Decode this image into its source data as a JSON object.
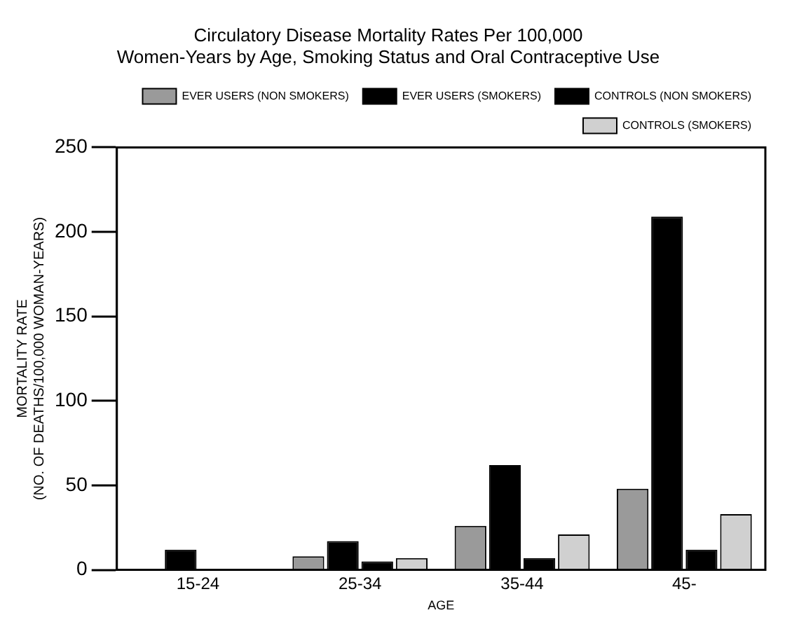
{
  "chart_data": {
    "type": "bar",
    "title": "Circulatory Disease Mortality Rates Per 100,000\nWomen-Years by Age, Smoking Status and Oral Contraceptive Use",
    "xlabel": "AGE",
    "ylabel": "MORTALITY RATE\n(NO. OF DEATHS/100,000 WOMAN-YEARS)",
    "categories": [
      "15-24",
      "25-34",
      "35-44",
      "45-"
    ],
    "series": [
      {
        "name": "EVER USERS (NON SMOKERS)",
        "color": "#9a9a9a",
        "values": [
          0,
          8,
          26,
          48
        ]
      },
      {
        "name": "EVER USERS (SMOKERS)",
        "color": "#000000",
        "values": [
          12,
          17,
          62,
          209
        ]
      },
      {
        "name": "CONTROLS (NON SMOKERS)",
        "color": "#000000",
        "values": [
          0,
          5,
          7,
          12
        ]
      },
      {
        "name": "CONTROLS (SMOKERS)",
        "color": "#d0d0d0",
        "values": [
          0,
          7,
          21,
          33
        ]
      }
    ],
    "ylim": [
      0,
      250
    ],
    "yticks": [
      0,
      50,
      100,
      150,
      200,
      250
    ],
    "grid": false,
    "legend": "top"
  }
}
